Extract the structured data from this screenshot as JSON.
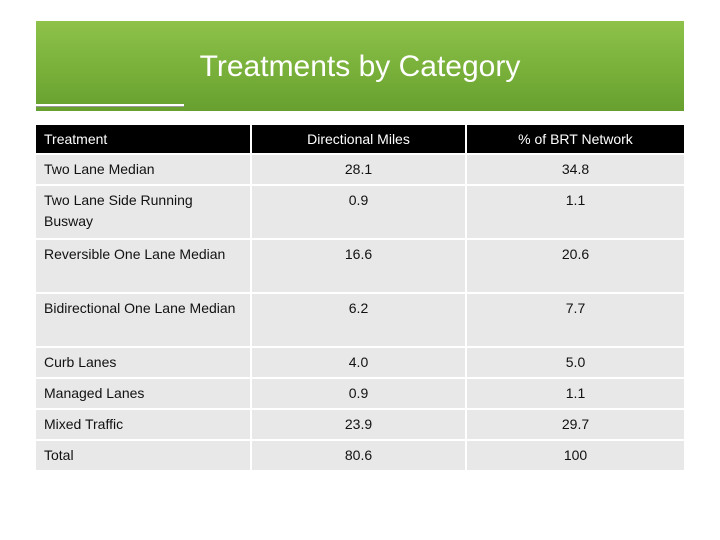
{
  "slide": {
    "title": "Treatments by Category"
  },
  "table": {
    "headers": [
      "Treatment",
      "Directional Miles",
      "% of BRT Network"
    ],
    "rows": [
      [
        "Two Lane Median",
        "28.1",
        "34.8"
      ],
      [
        "Two Lane Side Running Busway",
        "0.9",
        "1.1"
      ],
      [
        "Reversible One Lane Median",
        "16.6",
        "20.6"
      ],
      [
        "Bidirectional One Lane Median",
        "6.2",
        "7.7"
      ],
      [
        "Curb Lanes",
        "4.0",
        "5.0"
      ],
      [
        "Managed Lanes",
        "0.9",
        "1.1"
      ],
      [
        "Mixed Traffic",
        "23.9",
        "29.7"
      ],
      [
        "Total",
        "80.6",
        "100"
      ]
    ]
  },
  "colors": {
    "title_banner": "#78b03a",
    "header_bg": "#000000",
    "row_bg": "#e8e8e8"
  }
}
